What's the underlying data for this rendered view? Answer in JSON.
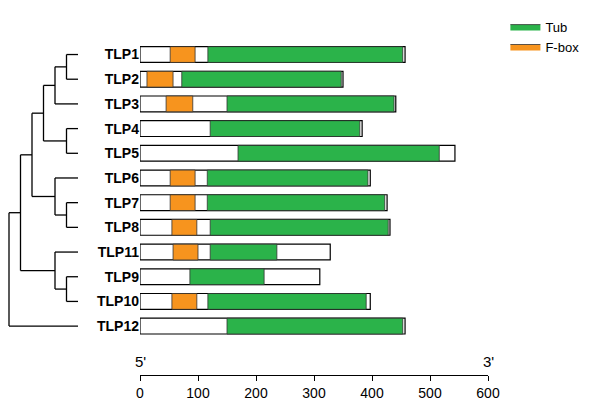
{
  "chart_data": {
    "type": "domain",
    "categories": [
      "TLP1",
      "TLP2",
      "TLP3",
      "TLP4",
      "TLP5",
      "TLP6",
      "TLP7",
      "TLP8",
      "TLP11",
      "TLP9",
      "TLP10",
      "TLP12"
    ],
    "lengths": [
      457,
      350,
      441,
      383,
      543,
      397,
      426,
      431,
      328,
      310,
      397,
      457
    ],
    "series": [
      {
        "name": "Tub",
        "color": "#2bb34a",
        "start": [
          117,
          72,
          150,
          121,
          169,
          116,
          116,
          121,
          121,
          86,
          117,
          150
        ],
        "end": [
          453,
          347,
          438,
          379,
          516,
          393,
          422,
          428,
          236,
          214,
          390,
          453
        ]
      },
      {
        "name": "F-box",
        "color": "#f7941e",
        "start": [
          52,
          12,
          45,
          null,
          null,
          52,
          52,
          55,
          57,
          null,
          55,
          null
        ],
        "end": [
          95,
          57,
          91,
          null,
          null,
          95,
          95,
          98,
          100,
          null,
          98,
          null
        ]
      }
    ],
    "xlim": [
      0,
      600
    ],
    "xticks": [
      0,
      100,
      200,
      300,
      400,
      500,
      600
    ],
    "annotations": [
      {
        "text": "5'",
        "x": 0
      },
      {
        "text": "3'",
        "x": 600
      }
    ],
    "legend": "top right",
    "grid": false
  },
  "tree": [
    [
      [
        [
          [
            [
              "TLP1",
              "TLP2"
            ],
            "TLP3"
          ],
          [
            "TLP4",
            "TLP5"
          ]
        ],
        [
          "TLP6",
          [
            "TLP7",
            "TLP8"
          ]
        ]
      ],
      [
        "TLP11",
        [
          "TLP9",
          "TLP10"
        ]
      ]
    ],
    "TLP12"
  ]
}
